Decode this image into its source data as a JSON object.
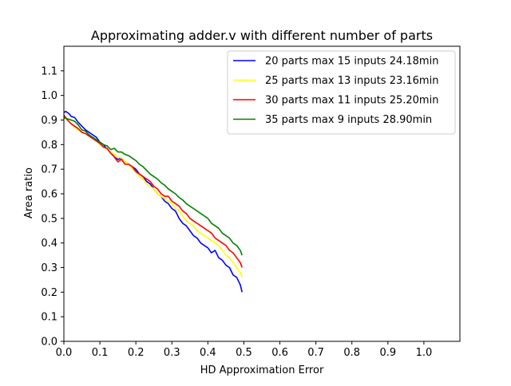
{
  "chart_data": {
    "type": "line",
    "title": "Approximating adder.v with different number of parts",
    "xlabel": "HD Approximation Error",
    "ylabel": "Area ratio",
    "xlim": [
      0.0,
      1.1
    ],
    "ylim": [
      0.0,
      1.2
    ],
    "xticks": [
      0.0,
      0.1,
      0.2,
      0.3,
      0.4,
      0.5,
      0.6,
      0.7,
      0.8,
      0.9,
      1.0
    ],
    "xtick_labels": [
      "0.0",
      "0.1",
      "0.2",
      "0.3",
      "0.4",
      "0.5",
      "0.6",
      "0.7",
      "0.8",
      "0.9",
      "1.0"
    ],
    "yticks": [
      0.0,
      0.1,
      0.2,
      0.3,
      0.4,
      0.5,
      0.6,
      0.7,
      0.8,
      0.9,
      1.0,
      1.1
    ],
    "ytick_labels": [
      "0.0",
      "0.1",
      "0.2",
      "0.3",
      "0.4",
      "0.5",
      "0.6",
      "0.7",
      "0.8",
      "0.9",
      "1.0",
      "1.1"
    ],
    "grid": false,
    "legend_position": "top-right",
    "series": [
      {
        "name": "20 parts max 15 inputs 24.18min",
        "color": "#0000ff",
        "x": [
          0.0,
          0.005,
          0.01,
          0.015,
          0.02,
          0.03,
          0.04,
          0.05,
          0.06,
          0.07,
          0.08,
          0.09,
          0.1,
          0.11,
          0.12,
          0.13,
          0.14,
          0.15,
          0.16,
          0.17,
          0.18,
          0.19,
          0.2,
          0.21,
          0.22,
          0.23,
          0.24,
          0.25,
          0.26,
          0.27,
          0.28,
          0.29,
          0.3,
          0.31,
          0.32,
          0.33,
          0.34,
          0.35,
          0.36,
          0.37,
          0.38,
          0.39,
          0.4,
          0.41,
          0.42,
          0.43,
          0.44,
          0.45,
          0.46,
          0.47,
          0.48,
          0.49,
          0.495
        ],
        "y": [
          0.93,
          0.935,
          0.93,
          0.925,
          0.915,
          0.91,
          0.89,
          0.875,
          0.86,
          0.85,
          0.84,
          0.83,
          0.81,
          0.8,
          0.78,
          0.77,
          0.75,
          0.74,
          0.745,
          0.73,
          0.72,
          0.71,
          0.7,
          0.68,
          0.67,
          0.65,
          0.64,
          0.62,
          0.6,
          0.59,
          0.57,
          0.56,
          0.54,
          0.53,
          0.5,
          0.48,
          0.47,
          0.45,
          0.43,
          0.42,
          0.4,
          0.39,
          0.38,
          0.36,
          0.37,
          0.34,
          0.33,
          0.31,
          0.3,
          0.27,
          0.26,
          0.23,
          0.2
        ]
      },
      {
        "name": "25 parts max 13 inputs 23.16min",
        "color": "#ffff00",
        "x": [
          0.0,
          0.01,
          0.02,
          0.03,
          0.04,
          0.05,
          0.06,
          0.07,
          0.08,
          0.09,
          0.1,
          0.11,
          0.12,
          0.13,
          0.14,
          0.15,
          0.16,
          0.17,
          0.18,
          0.19,
          0.2,
          0.21,
          0.22,
          0.23,
          0.24,
          0.25,
          0.26,
          0.27,
          0.28,
          0.29,
          0.3,
          0.31,
          0.32,
          0.33,
          0.34,
          0.35,
          0.36,
          0.37,
          0.38,
          0.39,
          0.4,
          0.41,
          0.42,
          0.43,
          0.44,
          0.45,
          0.46,
          0.47,
          0.48,
          0.49,
          0.495
        ],
        "y": [
          0.91,
          0.9,
          0.885,
          0.87,
          0.86,
          0.85,
          0.845,
          0.835,
          0.825,
          0.815,
          0.8,
          0.79,
          0.78,
          0.77,
          0.76,
          0.75,
          0.745,
          0.73,
          0.72,
          0.7,
          0.69,
          0.67,
          0.66,
          0.64,
          0.63,
          0.62,
          0.6,
          0.59,
          0.58,
          0.57,
          0.56,
          0.54,
          0.53,
          0.51,
          0.49,
          0.48,
          0.47,
          0.45,
          0.44,
          0.43,
          0.42,
          0.41,
          0.4,
          0.39,
          0.37,
          0.35,
          0.34,
          0.32,
          0.3,
          0.28,
          0.26
        ]
      },
      {
        "name": "30 parts max 11 inputs 25.20min",
        "color": "#ff0000",
        "x": [
          0.0,
          0.01,
          0.02,
          0.03,
          0.04,
          0.05,
          0.06,
          0.07,
          0.08,
          0.09,
          0.1,
          0.11,
          0.12,
          0.13,
          0.14,
          0.15,
          0.16,
          0.17,
          0.18,
          0.19,
          0.2,
          0.21,
          0.22,
          0.23,
          0.24,
          0.25,
          0.26,
          0.27,
          0.28,
          0.29,
          0.3,
          0.31,
          0.32,
          0.33,
          0.34,
          0.35,
          0.36,
          0.37,
          0.38,
          0.39,
          0.4,
          0.41,
          0.42,
          0.43,
          0.44,
          0.45,
          0.46,
          0.47,
          0.48,
          0.49,
          0.495
        ],
        "y": [
          0.92,
          0.9,
          0.885,
          0.875,
          0.865,
          0.85,
          0.845,
          0.835,
          0.825,
          0.815,
          0.805,
          0.79,
          0.785,
          0.765,
          0.75,
          0.73,
          0.74,
          0.72,
          0.72,
          0.71,
          0.69,
          0.68,
          0.67,
          0.66,
          0.65,
          0.63,
          0.62,
          0.6,
          0.59,
          0.59,
          0.57,
          0.56,
          0.55,
          0.53,
          0.52,
          0.5,
          0.49,
          0.48,
          0.47,
          0.46,
          0.45,
          0.44,
          0.42,
          0.41,
          0.4,
          0.39,
          0.37,
          0.36,
          0.34,
          0.32,
          0.3
        ]
      },
      {
        "name": "35 parts max 9 inputs 28.90min",
        "color": "#008000",
        "x": [
          0.0,
          0.01,
          0.02,
          0.03,
          0.04,
          0.05,
          0.06,
          0.07,
          0.08,
          0.09,
          0.1,
          0.11,
          0.12,
          0.13,
          0.14,
          0.15,
          0.16,
          0.17,
          0.18,
          0.19,
          0.2,
          0.21,
          0.22,
          0.23,
          0.24,
          0.25,
          0.26,
          0.27,
          0.28,
          0.29,
          0.3,
          0.31,
          0.32,
          0.33,
          0.34,
          0.35,
          0.36,
          0.37,
          0.38,
          0.39,
          0.4,
          0.41,
          0.42,
          0.43,
          0.44,
          0.45,
          0.46,
          0.47,
          0.48,
          0.49,
          0.495
        ],
        "y": [
          0.91,
          0.905,
          0.9,
          0.895,
          0.88,
          0.86,
          0.855,
          0.84,
          0.83,
          0.82,
          0.81,
          0.8,
          0.795,
          0.78,
          0.785,
          0.77,
          0.77,
          0.76,
          0.755,
          0.745,
          0.735,
          0.72,
          0.71,
          0.695,
          0.68,
          0.67,
          0.66,
          0.645,
          0.635,
          0.62,
          0.61,
          0.6,
          0.585,
          0.575,
          0.56,
          0.55,
          0.54,
          0.53,
          0.52,
          0.51,
          0.5,
          0.48,
          0.47,
          0.46,
          0.44,
          0.43,
          0.42,
          0.4,
          0.39,
          0.37,
          0.35
        ]
      }
    ]
  }
}
